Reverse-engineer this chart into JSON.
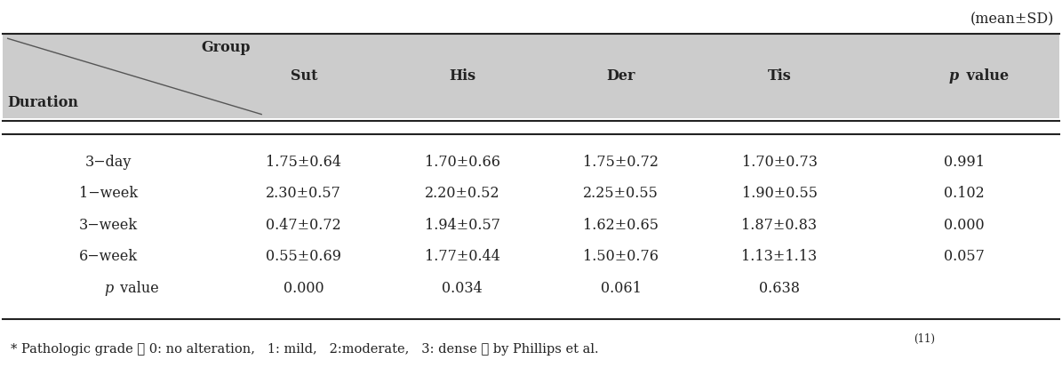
{
  "mean_sd_label": "(mean±SD)",
  "header_bg_color": "#cccccc",
  "header_group": "Group",
  "header_duration": "Duration",
  "col_headers": [
    "Sut",
    "His",
    "Der",
    "Tis",
    "p value"
  ],
  "rows": [
    {
      "label": "3−day",
      "vals": [
        "1.75±0.64",
        "1.70±0.66",
        "1.75±0.72",
        "1.70±0.73",
        "0.991"
      ]
    },
    {
      "label": "1−week",
      "vals": [
        "2.30±0.57",
        "2.20±0.52",
        "2.25±0.55",
        "1.90±0.55",
        "0.102"
      ]
    },
    {
      "label": "3−week",
      "vals": [
        "0.47±0.72",
        "1.94±0.57",
        "1.62±0.65",
        "1.87±0.83",
        "0.000"
      ]
    },
    {
      "label": "6−week",
      "vals": [
        "0.55±0.69",
        "1.77±0.44",
        "1.50±0.76",
        "1.13±1.13",
        "0.057"
      ]
    },
    {
      "label": "p value",
      "vals": [
        "0.000",
        "0.034",
        "0.061",
        "0.638",
        ""
      ]
    }
  ],
  "footnote": "* Pathologic grade （ 0: no alteration,   1: mild,   2:moderate,   3: dense ） by Phillips et al.",
  "footnote_superscript": "(11)",
  "bg_color": "#ffffff",
  "text_color": "#222222",
  "font_size": 11.5,
  "header_font_size": 11.5,
  "footnote_font_size": 10.5
}
